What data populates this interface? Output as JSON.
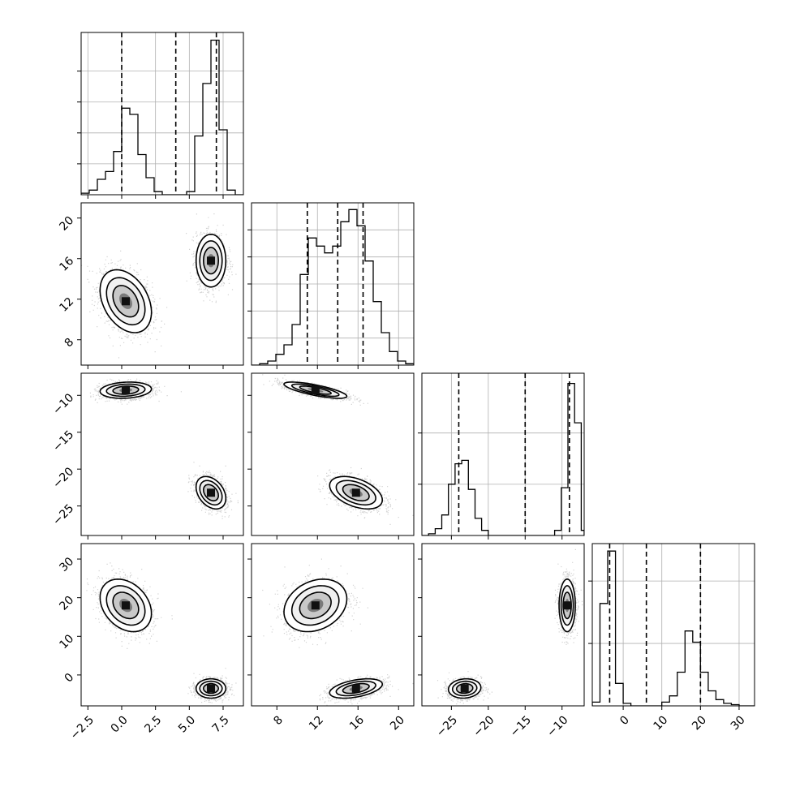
{
  "chart_data": {
    "type": "corner",
    "title": "",
    "grid": true,
    "variables": [
      {
        "range": [
          -3.0,
          9.0
        ],
        "ticks": [
          -2.5,
          0.0,
          2.5,
          5.0,
          7.5
        ],
        "tick_labels": [
          "−2.5",
          "0.0",
          "2.5",
          "5.0",
          "7.5"
        ],
        "quantiles": [
          0.0,
          4.0,
          7.0
        ],
        "hist": {
          "edges": [
            -3.0,
            -2.4,
            -1.8,
            -1.2,
            -0.6,
            0.0,
            0.6,
            1.2,
            1.8,
            2.4,
            3.0,
            3.6,
            4.2,
            4.8,
            5.4,
            6.0,
            6.6,
            7.2,
            7.8,
            8.4,
            9.0
          ],
          "counts": [
            1,
            3,
            10,
            15,
            28,
            56,
            52,
            26,
            11,
            2,
            0,
            0,
            0,
            2,
            38,
            72,
            100,
            42,
            3,
            0
          ],
          "ymax": 105,
          "grid_ticks": [
            20,
            40,
            60,
            80
          ]
        }
      },
      {
        "range": [
          5.5,
          21.5
        ],
        "ticks": [
          8,
          12,
          16,
          20
        ],
        "tick_labels": [
          "8",
          "12",
          "16",
          "20"
        ],
        "quantiles": [
          11.0,
          14.0,
          16.5
        ],
        "hist": {
          "edges": [
            5.5,
            6.3,
            7.1,
            7.9,
            8.7,
            9.5,
            10.3,
            11.1,
            11.9,
            12.7,
            13.5,
            14.3,
            15.1,
            15.9,
            16.7,
            17.5,
            18.3,
            19.1,
            19.9,
            20.7,
            21.5
          ],
          "counts": [
            0,
            1,
            3,
            8,
            15,
            30,
            67,
            94,
            88,
            83,
            88,
            106,
            115,
            103,
            77,
            47,
            24,
            10,
            3,
            1
          ],
          "ymax": 120,
          "grid_ticks": [
            20,
            40,
            60,
            80,
            100
          ]
        }
      },
      {
        "range": [
          -29.0,
          -7.0
        ],
        "ticks": [
          -25,
          -20,
          -15,
          -10
        ],
        "tick_labels": [
          "−25",
          "−20",
          "−15",
          "−10"
        ],
        "quantiles": [
          -24.0,
          -15.0,
          -9.0
        ],
        "hist": {
          "edges": [
            -29.0,
            -28.1,
            -27.2,
            -26.3,
            -25.4,
            -24.5,
            -23.6,
            -22.7,
            -21.8,
            -20.9,
            -20.0,
            -19.1,
            -18.2,
            -17.3,
            -16.4,
            -15.5,
            -14.6,
            -13.7,
            -12.8,
            -11.9,
            -11.0,
            -10.1,
            -9.2,
            -8.3,
            -7.4,
            -7.0
          ],
          "counts": [
            0,
            1,
            4,
            12,
            30,
            42,
            44,
            27,
            10,
            3,
            0,
            0,
            0,
            0,
            0,
            0,
            0,
            0,
            0,
            0,
            3,
            28,
            89,
            66,
            3
          ],
          "ymax": 95,
          "grid_ticks": [
            30,
            60
          ]
        }
      },
      {
        "range": [
          -8.0,
          34.0
        ],
        "ticks": [
          0,
          10,
          20,
          30
        ],
        "tick_labels": [
          "0",
          "10",
          "20",
          "30"
        ],
        "quantiles": [
          -3.5,
          6.0,
          20.0
        ],
        "hist": {
          "edges": [
            -8.0,
            -6.0,
            -4.0,
            -2.0,
            0.0,
            2.0,
            4.0,
            6.0,
            8.0,
            10.0,
            12.0,
            14.0,
            16.0,
            18.0,
            20.0,
            22.0,
            24.0,
            26.0,
            28.0,
            30.0,
            32.0,
            34.0
          ],
          "counts": [
            3,
            82,
            124,
            18,
            2,
            0,
            0,
            0,
            0,
            3,
            8,
            27,
            60,
            51,
            27,
            12,
            5,
            2,
            1,
            0,
            0
          ],
          "ymax": 130,
          "grid_ticks": [
            50,
            100
          ]
        }
      }
    ],
    "components": [
      {
        "mean": [
          0.3,
          11.8,
          -9.3,
          18.0
        ],
        "sd": [
          0.95,
          1.55,
          0.55,
          3.4
        ],
        "corr": [
          [
            1,
            -0.35,
            0.15,
            -0.3
          ],
          [
            -0.35,
            1,
            -0.75,
            0.25
          ],
          [
            0.15,
            -0.75,
            1,
            0.0
          ],
          [
            -0.3,
            0.25,
            0.0,
            1
          ]
        ]
      },
      {
        "mean": [
          6.6,
          15.8,
          -23.2,
          -3.5
        ],
        "sd": [
          0.55,
          1.3,
          1.1,
          1.25
        ],
        "corr": [
          [
            1,
            0.0,
            -0.35,
            0.0
          ],
          [
            0.0,
            1,
            -0.45,
            0.45
          ],
          [
            -0.35,
            -0.45,
            1,
            0.1
          ],
          [
            0.0,
            0.45,
            0.1,
            1
          ]
        ]
      }
    ]
  }
}
